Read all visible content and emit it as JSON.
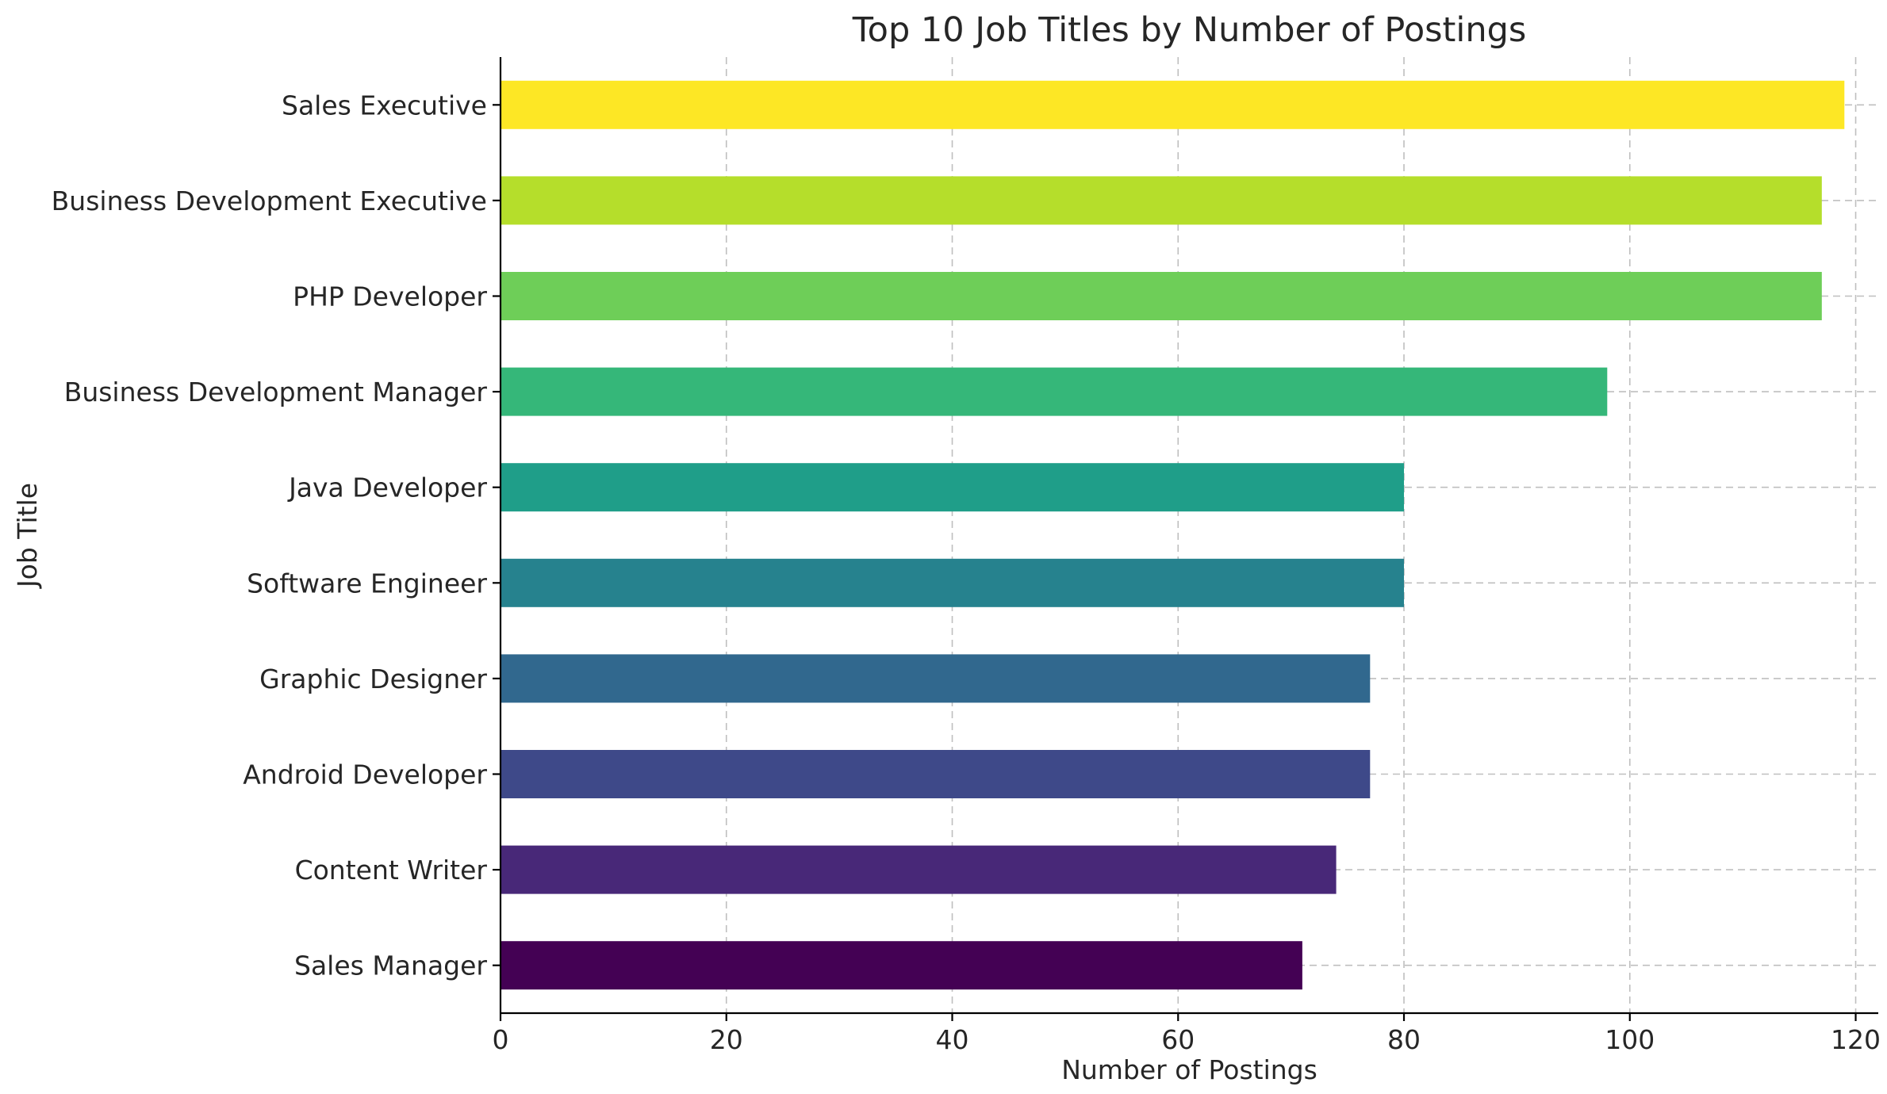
{
  "chart_data": {
    "type": "bar",
    "orientation": "horizontal",
    "title": "Top 10 Job Titles by Number of Postings",
    "xlabel": "Number of Postings",
    "ylabel": "Job Title",
    "categories": [
      "Sales Executive",
      "Business Development Executive",
      "PHP Developer",
      "Business Development Manager",
      "Java Developer",
      "Software Engineer",
      "Graphic Designer",
      "Android Developer",
      "Content Writer",
      "Sales Manager"
    ],
    "values": [
      119,
      117,
      117,
      98,
      80,
      80,
      77,
      77,
      74,
      71
    ],
    "colors": [
      "#fde725",
      "#b5de2b",
      "#6ece58",
      "#35b779",
      "#1f9e89",
      "#26828e",
      "#31688e",
      "#3e4989",
      "#482878",
      "#440154"
    ],
    "xlim": [
      0,
      122
    ],
    "xticks": [
      0,
      20,
      40,
      60,
      80,
      100,
      120
    ],
    "grid": true,
    "legend": "none"
  }
}
